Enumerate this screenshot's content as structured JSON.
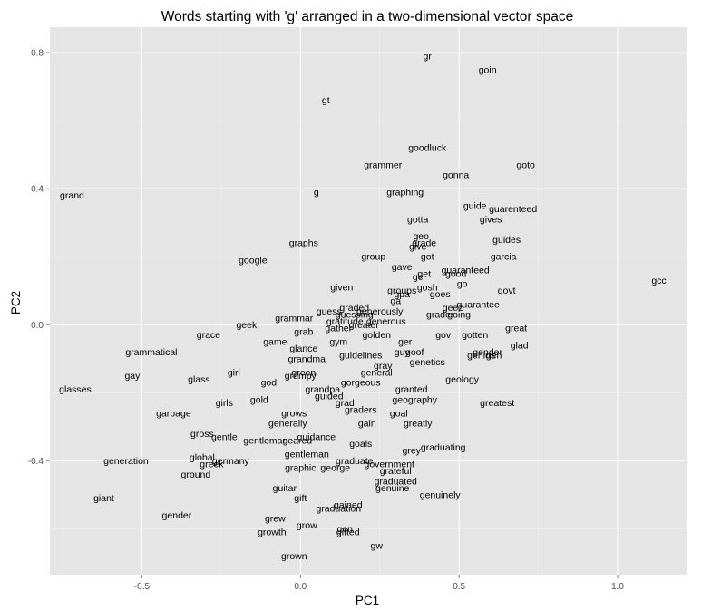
{
  "chart_data": {
    "type": "scatter",
    "title": "Words starting with 'g' arranged in a two-dimensional vector space",
    "xlabel": "PC1",
    "ylabel": "PC2",
    "xlim": [
      -0.79,
      1.22
    ],
    "ylim": [
      -0.735,
      0.875
    ],
    "x_ticks": [
      -0.5,
      0.0,
      0.5,
      1.0
    ],
    "y_ticks": [
      -0.4,
      0.0,
      0.4,
      0.8
    ],
    "x_tick_labels": [
      "-0.5",
      "0.0",
      "0.5",
      "1.0"
    ],
    "y_tick_labels": [
      "-0.4",
      "0.0",
      "0.4",
      "0.8"
    ],
    "grid": true,
    "panel_color": "#e5e5e5",
    "grid_major_color": "#ffffff",
    "grid_minor_color": "#f2f2f2",
    "points": [
      {
        "label": "gr",
        "x": 0.4,
        "y": 0.79
      },
      {
        "label": "goin",
        "x": 0.59,
        "y": 0.75
      },
      {
        "label": "gt",
        "x": 0.08,
        "y": 0.66
      },
      {
        "label": "goodluck",
        "x": 0.4,
        "y": 0.52
      },
      {
        "label": "grammer",
        "x": 0.26,
        "y": 0.47
      },
      {
        "label": "goto",
        "x": 0.71,
        "y": 0.47
      },
      {
        "label": "gonna",
        "x": 0.49,
        "y": 0.44
      },
      {
        "label": "grand",
        "x": -0.72,
        "y": 0.38
      },
      {
        "label": "g",
        "x": 0.05,
        "y": 0.39
      },
      {
        "label": "graphing",
        "x": 0.33,
        "y": 0.39
      },
      {
        "label": "guide",
        "x": 0.55,
        "y": 0.35
      },
      {
        "label": "guarenteed",
        "x": 0.67,
        "y": 0.34
      },
      {
        "label": "gives",
        "x": 0.6,
        "y": 0.31
      },
      {
        "label": "gotta",
        "x": 0.37,
        "y": 0.31
      },
      {
        "label": "geo",
        "x": 0.38,
        "y": 0.26
      },
      {
        "label": "graphs",
        "x": 0.01,
        "y": 0.24
      },
      {
        "label": "grade",
        "x": 0.39,
        "y": 0.24
      },
      {
        "label": "guides",
        "x": 0.65,
        "y": 0.25
      },
      {
        "label": "give",
        "x": 0.37,
        "y": 0.23
      },
      {
        "label": "got",
        "x": 0.4,
        "y": 0.2
      },
      {
        "label": "garcia",
        "x": 0.64,
        "y": 0.2
      },
      {
        "label": "google",
        "x": -0.15,
        "y": 0.19
      },
      {
        "label": "group",
        "x": 0.23,
        "y": 0.2
      },
      {
        "label": "gave",
        "x": 0.32,
        "y": 0.17
      },
      {
        "label": "get",
        "x": 0.39,
        "y": 0.15
      },
      {
        "label": "guaranteed",
        "x": 0.52,
        "y": 0.16
      },
      {
        "label": "ge",
        "x": 0.37,
        "y": 0.14
      },
      {
        "label": "good",
        "x": 0.49,
        "y": 0.15
      },
      {
        "label": "gcc",
        "x": 1.13,
        "y": 0.13
      },
      {
        "label": "go",
        "x": 0.51,
        "y": 0.12
      },
      {
        "label": "given",
        "x": 0.13,
        "y": 0.11
      },
      {
        "label": "gosh",
        "x": 0.4,
        "y": 0.11
      },
      {
        "label": "groups",
        "x": 0.32,
        "y": 0.1
      },
      {
        "label": "govt",
        "x": 0.65,
        "y": 0.1
      },
      {
        "label": "gpa",
        "x": 0.32,
        "y": 0.09
      },
      {
        "label": "goes",
        "x": 0.44,
        "y": 0.09
      },
      {
        "label": "ga",
        "x": 0.3,
        "y": 0.07
      },
      {
        "label": "guarantee",
        "x": 0.56,
        "y": 0.06
      },
      {
        "label": "guess",
        "x": 0.09,
        "y": 0.04
      },
      {
        "label": "graded",
        "x": 0.17,
        "y": 0.05
      },
      {
        "label": "generously",
        "x": 0.25,
        "y": 0.04
      },
      {
        "label": "geez",
        "x": 0.48,
        "y": 0.05
      },
      {
        "label": "grader",
        "x": 0.44,
        "y": 0.03
      },
      {
        "label": "going",
        "x": 0.5,
        "y": 0.03
      },
      {
        "label": "guessing",
        "x": 0.17,
        "y": 0.03
      },
      {
        "label": "grammar",
        "x": -0.02,
        "y": 0.02
      },
      {
        "label": "generous",
        "x": 0.27,
        "y": 0.01
      },
      {
        "label": "gratitude",
        "x": 0.14,
        "y": 0.01
      },
      {
        "label": "greater",
        "x": 0.2,
        "y": 0.0
      },
      {
        "label": "geek",
        "x": -0.17,
        "y": 0.0
      },
      {
        "label": "grab",
        "x": 0.01,
        "y": -0.02
      },
      {
        "label": "gather",
        "x": 0.12,
        "y": -0.01
      },
      {
        "label": "gotten",
        "x": 0.55,
        "y": -0.03
      },
      {
        "label": "great",
        "x": 0.68,
        "y": -0.01
      },
      {
        "label": "gov",
        "x": 0.45,
        "y": -0.03
      },
      {
        "label": "golden",
        "x": 0.24,
        "y": -0.03
      },
      {
        "label": "grace",
        "x": -0.29,
        "y": -0.03
      },
      {
        "label": "ger",
        "x": 0.33,
        "y": -0.05
      },
      {
        "label": "game",
        "x": -0.08,
        "y": -0.05
      },
      {
        "label": "gym",
        "x": 0.12,
        "y": -0.05
      },
      {
        "label": "glad",
        "x": 0.69,
        "y": -0.06
      },
      {
        "label": "glance",
        "x": 0.01,
        "y": -0.07
      },
      {
        "label": "gen",
        "x": 0.61,
        "y": -0.09
      },
      {
        "label": "genius",
        "x": 0.57,
        "y": -0.09
      },
      {
        "label": "goof",
        "x": 0.36,
        "y": -0.08
      },
      {
        "label": "guy",
        "x": 0.32,
        "y": -0.08
      },
      {
        "label": "gender",
        "x": 0.59,
        "y": -0.08
      },
      {
        "label": "grammatical",
        "x": -0.47,
        "y": -0.08
      },
      {
        "label": "grandma",
        "x": 0.02,
        "y": -0.1
      },
      {
        "label": "guidelines",
        "x": 0.19,
        "y": -0.09
      },
      {
        "label": "genetics",
        "x": 0.4,
        "y": -0.11
      },
      {
        "label": "gray",
        "x": 0.26,
        "y": -0.12
      },
      {
        "label": "general",
        "x": 0.24,
        "y": -0.14
      },
      {
        "label": "green",
        "x": 0.01,
        "y": -0.14
      },
      {
        "label": "gay",
        "x": -0.53,
        "y": -0.15
      },
      {
        "label": "glass",
        "x": -0.32,
        "y": -0.16
      },
      {
        "label": "girl",
        "x": -0.21,
        "y": -0.14
      },
      {
        "label": "grumpy",
        "x": 0.0,
        "y": -0.15
      },
      {
        "label": "geology",
        "x": 0.51,
        "y": -0.16
      },
      {
        "label": "god",
        "x": -0.1,
        "y": -0.17
      },
      {
        "label": "gorgeous",
        "x": 0.19,
        "y": -0.17
      },
      {
        "label": "glasses",
        "x": -0.71,
        "y": -0.19
      },
      {
        "label": "grandpa",
        "x": 0.07,
        "y": -0.19
      },
      {
        "label": "granted",
        "x": 0.35,
        "y": -0.19
      },
      {
        "label": "guided",
        "x": 0.09,
        "y": -0.21
      },
      {
        "label": "grad",
        "x": 0.14,
        "y": -0.23
      },
      {
        "label": "gold",
        "x": -0.13,
        "y": -0.22
      },
      {
        "label": "girls",
        "x": -0.24,
        "y": -0.23
      },
      {
        "label": "geography",
        "x": 0.36,
        "y": -0.22
      },
      {
        "label": "greatest",
        "x": 0.62,
        "y": -0.23
      },
      {
        "label": "graders",
        "x": 0.19,
        "y": -0.25
      },
      {
        "label": "goal",
        "x": 0.31,
        "y": -0.26
      },
      {
        "label": "garbage",
        "x": -0.4,
        "y": -0.26
      },
      {
        "label": "grows",
        "x": -0.02,
        "y": -0.26
      },
      {
        "label": "generally",
        "x": -0.04,
        "y": -0.29
      },
      {
        "label": "gain",
        "x": 0.21,
        "y": -0.29
      },
      {
        "label": "greatly",
        "x": 0.37,
        "y": -0.29
      },
      {
        "label": "gross",
        "x": -0.31,
        "y": -0.32
      },
      {
        "label": "gentle",
        "x": -0.24,
        "y": -0.33
      },
      {
        "label": "gentleman",
        "x": -0.11,
        "y": -0.34
      },
      {
        "label": "guidance",
        "x": 0.05,
        "y": -0.33
      },
      {
        "label": "geared",
        "x": -0.01,
        "y": -0.34
      },
      {
        "label": "goals",
        "x": 0.19,
        "y": -0.35
      },
      {
        "label": "graduating",
        "x": 0.45,
        "y": -0.36
      },
      {
        "label": "grey",
        "x": 0.35,
        "y": -0.37
      },
      {
        "label": "germany",
        "x": -0.22,
        "y": -0.4
      },
      {
        "label": "global",
        "x": -0.31,
        "y": -0.39
      },
      {
        "label": "generation",
        "x": -0.55,
        "y": -0.4
      },
      {
        "label": "greek",
        "x": -0.28,
        "y": -0.41
      },
      {
        "label": "gentleman",
        "x": 0.02,
        "y": -0.38
      },
      {
        "label": "graduate",
        "x": 0.17,
        "y": -0.4
      },
      {
        "label": "government",
        "x": 0.28,
        "y": -0.41
      },
      {
        "label": "george",
        "x": 0.11,
        "y": -0.42
      },
      {
        "label": "grateful",
        "x": 0.3,
        "y": -0.43
      },
      {
        "label": "graphic",
        "x": 0.0,
        "y": -0.42
      },
      {
        "label": "ground",
        "x": -0.33,
        "y": -0.44
      },
      {
        "label": "graduated",
        "x": 0.3,
        "y": -0.46
      },
      {
        "label": "genuine",
        "x": 0.29,
        "y": -0.48
      },
      {
        "label": "guitar",
        "x": -0.05,
        "y": -0.48
      },
      {
        "label": "genuinely",
        "x": 0.44,
        "y": -0.5
      },
      {
        "label": "giant",
        "x": -0.62,
        "y": -0.51
      },
      {
        "label": "gift",
        "x": 0.0,
        "y": -0.51
      },
      {
        "label": "gained",
        "x": 0.15,
        "y": -0.53
      },
      {
        "label": "graduation",
        "x": 0.12,
        "y": -0.54
      },
      {
        "label": "gender",
        "x": -0.39,
        "y": -0.56
      },
      {
        "label": "grew",
        "x": -0.08,
        "y": -0.57
      },
      {
        "label": "grow",
        "x": 0.02,
        "y": -0.59
      },
      {
        "label": "gen",
        "x": 0.14,
        "y": -0.6
      },
      {
        "label": "growth",
        "x": -0.09,
        "y": -0.61
      },
      {
        "label": "gifted",
        "x": 0.15,
        "y": -0.61
      },
      {
        "label": "gw",
        "x": 0.24,
        "y": -0.65
      },
      {
        "label": "grown",
        "x": -0.02,
        "y": -0.68
      }
    ]
  }
}
